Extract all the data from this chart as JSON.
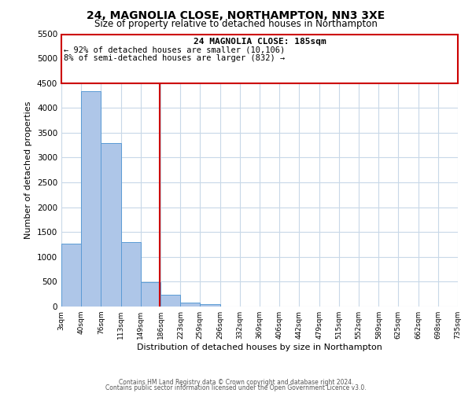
{
  "title": "24, MAGNOLIA CLOSE, NORTHAMPTON, NN3 3XE",
  "subtitle": "Size of property relative to detached houses in Northampton",
  "xlabel": "Distribution of detached houses by size in Northampton",
  "ylabel": "Number of detached properties",
  "bar_edges": [
    3,
    40,
    76,
    113,
    149,
    186,
    223,
    259,
    296,
    332,
    369,
    406,
    442,
    479,
    515,
    552,
    589,
    625,
    662,
    698,
    735
  ],
  "bar_heights": [
    1270,
    4330,
    3290,
    1290,
    490,
    240,
    80,
    50,
    0,
    0,
    0,
    0,
    0,
    0,
    0,
    0,
    0,
    0,
    0,
    0
  ],
  "bar_color": "#aec6e8",
  "bar_edge_color": "#5b9bd5",
  "property_line_x": 185,
  "property_line_color": "#cc0000",
  "annotation_title": "24 MAGNOLIA CLOSE: 185sqm",
  "annotation_line1": "← 92% of detached houses are smaller (10,106)",
  "annotation_line2": "8% of semi-detached houses are larger (832) →",
  "annotation_box_color": "#cc0000",
  "ylim": [
    0,
    5500
  ],
  "yticks": [
    0,
    500,
    1000,
    1500,
    2000,
    2500,
    3000,
    3500,
    4000,
    4500,
    5000,
    5500
  ],
  "tick_labels": [
    "3sqm",
    "40sqm",
    "76sqm",
    "113sqm",
    "149sqm",
    "186sqm",
    "223sqm",
    "259sqm",
    "296sqm",
    "332sqm",
    "369sqm",
    "406sqm",
    "442sqm",
    "479sqm",
    "515sqm",
    "552sqm",
    "589sqm",
    "625sqm",
    "662sqm",
    "698sqm",
    "735sqm"
  ],
  "footer1": "Contains HM Land Registry data © Crown copyright and database right 2024.",
  "footer2": "Contains public sector information licensed under the Open Government Licence v3.0.",
  "bg_color": "#ffffff",
  "grid_color": "#c8d8e8",
  "title_fontsize": 10,
  "subtitle_fontsize": 8.5,
  "ylabel_fontsize": 8,
  "xlabel_fontsize": 8,
  "ytick_fontsize": 7.5,
  "xtick_fontsize": 6.5,
  "footer_fontsize": 5.5,
  "ann_title_fontsize": 8,
  "ann_line_fontsize": 7.5
}
